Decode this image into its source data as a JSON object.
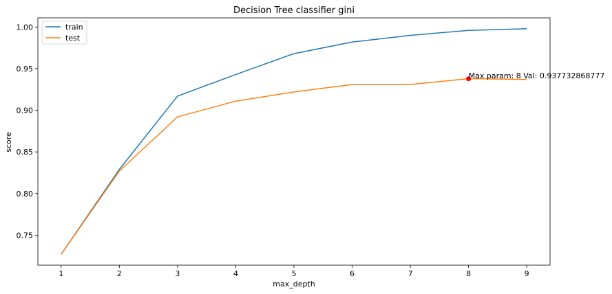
{
  "chart_data": {
    "type": "line",
    "title": "Decision Tree classifier gini",
    "xlabel": "max_depth",
    "ylabel": "score",
    "x": [
      1,
      2,
      3,
      4,
      5,
      6,
      7,
      8,
      9
    ],
    "xticks": [
      1,
      2,
      3,
      4,
      5,
      6,
      7,
      8,
      9
    ],
    "xlim": [
      0.6,
      9.4
    ],
    "yticks": [
      0.75,
      0.8,
      0.85,
      0.9,
      0.95,
      1.0
    ],
    "ytick_labels": [
      "0.75",
      "0.80",
      "0.85",
      "0.90",
      "0.95",
      "1.00"
    ],
    "ylim": [
      0.714,
      1.011
    ],
    "grid": false,
    "legend_position": "top-left",
    "series": [
      {
        "name": "train",
        "color": "#1f77b4",
        "values": [
          0.727,
          0.829,
          0.917,
          0.943,
          0.968,
          0.982,
          0.99,
          0.996,
          0.998
        ]
      },
      {
        "name": "test",
        "color": "#ff7f0e",
        "values": [
          0.727,
          0.827,
          0.892,
          0.911,
          0.922,
          0.931,
          0.931,
          0.938,
          0.937
        ]
      }
    ],
    "annotation": {
      "x": 8,
      "y": 0.937732868777,
      "text": "Max param: 8 Val: 0.937732868777",
      "marker_color": "#ff0000"
    }
  }
}
